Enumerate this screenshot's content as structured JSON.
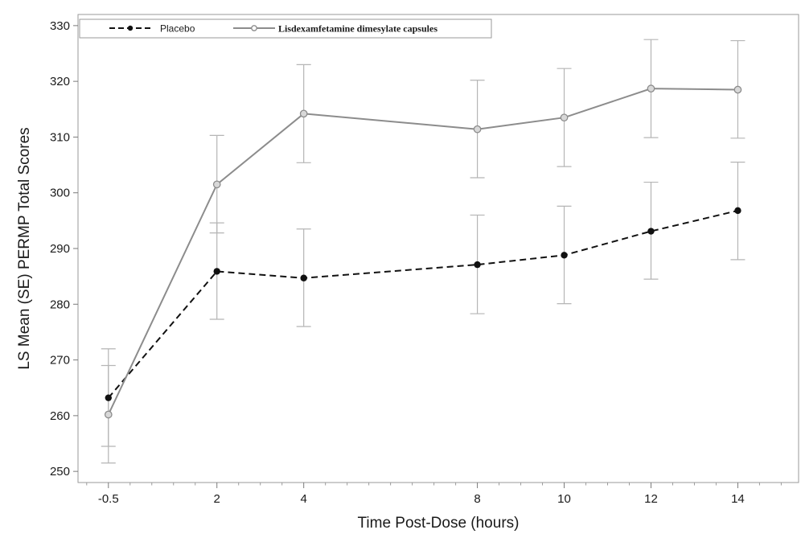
{
  "chart_data": {
    "type": "line",
    "xlabel": "Time Post-Dose (hours)",
    "ylabel": "LS Mean (SE) PERMP Total Scores",
    "xlim": [
      -1.2,
      15.4
    ],
    "ylim": [
      248,
      332
    ],
    "x_ticks": [
      -0.5,
      2,
      4,
      8,
      10,
      12,
      14
    ],
    "x_tick_labels": [
      "-0.5",
      "2",
      "4",
      "8",
      "10",
      "12",
      "14"
    ],
    "y_ticks": [
      250,
      260,
      270,
      280,
      290,
      300,
      310,
      320,
      330
    ],
    "legend": {
      "placement": "top-left"
    },
    "series": [
      {
        "name": "Placebo",
        "style": "dashed",
        "color": "#111111",
        "marker": "filled-circle",
        "x": [
          -0.5,
          2,
          4,
          8,
          10,
          12,
          14
        ],
        "y": [
          263.2,
          285.9,
          284.7,
          287.1,
          288.8,
          293.1,
          296.8
        ],
        "se_lower": [
          254.5,
          277.3,
          276.0,
          278.3,
          280.1,
          284.5,
          288.0
        ],
        "se_upper": [
          272.0,
          294.6,
          293.5,
          296.0,
          297.6,
          301.9,
          305.5
        ]
      },
      {
        "name": "Lisdexamfetamine dimesylate capsules",
        "style": "solid",
        "color": "#8c8c8c",
        "marker": "open-circle",
        "x": [
          -0.5,
          2,
          4,
          8,
          10,
          12,
          14
        ],
        "y": [
          260.2,
          301.5,
          314.2,
          311.4,
          313.5,
          318.7,
          318.5
        ],
        "se_lower": [
          251.5,
          292.8,
          305.4,
          302.7,
          304.7,
          309.9,
          309.8
        ],
        "se_upper": [
          269.0,
          310.3,
          323.0,
          320.2,
          322.3,
          327.5,
          327.3
        ]
      }
    ]
  }
}
